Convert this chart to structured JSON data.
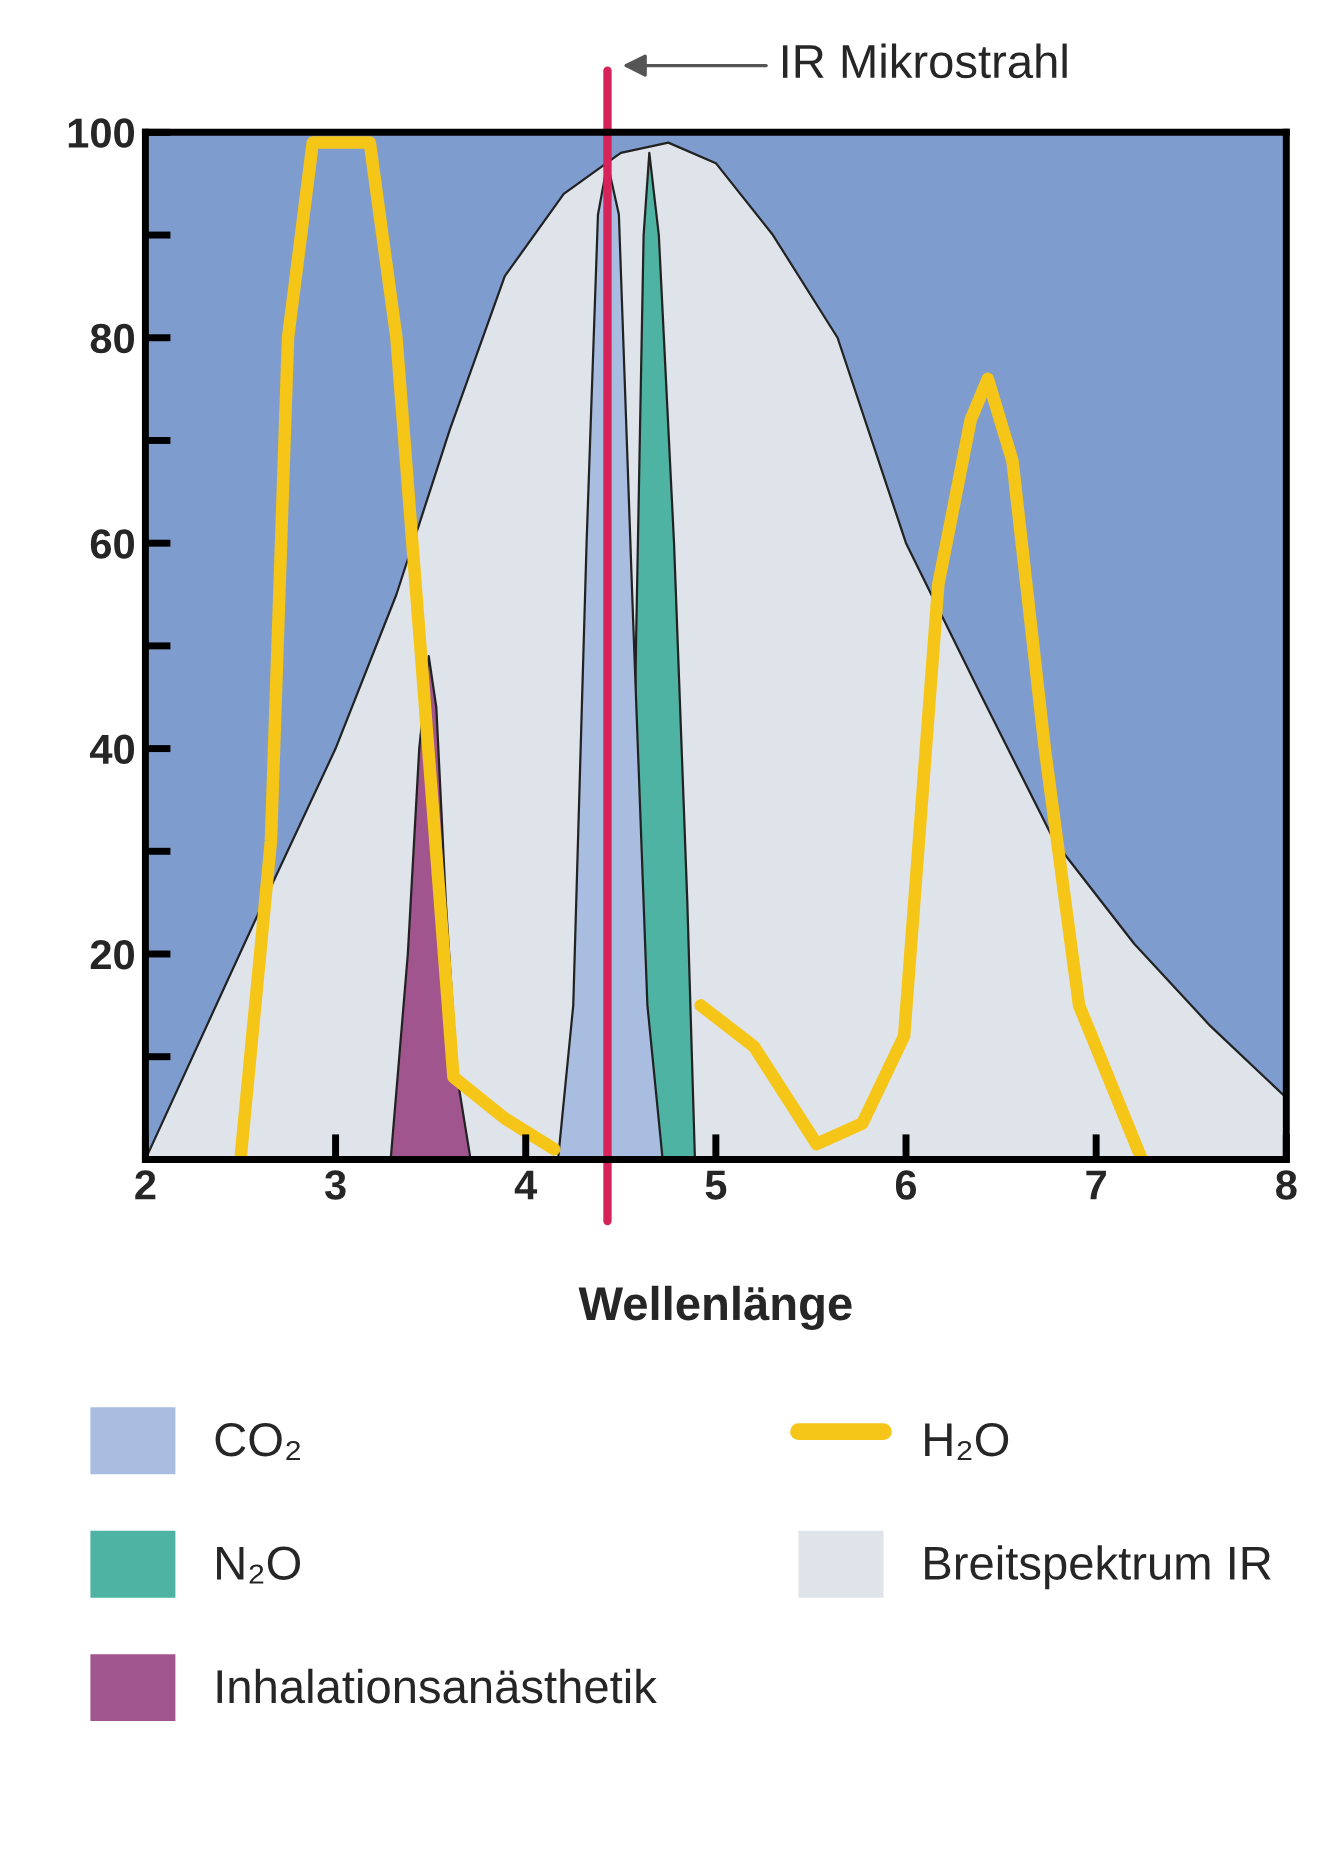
{
  "chart_data": {
    "type": "area",
    "xlabel": "Wellenlänge",
    "series": [
      {
        "name": "CO₂",
        "color": "#a9bde0",
        "x": [
          4.17,
          4.25,
          4.32,
          4.38,
          4.43,
          4.49,
          4.56,
          4.64,
          4.72
        ],
        "values": [
          0,
          15,
          60,
          92,
          97,
          92,
          55,
          15,
          0
        ]
      },
      {
        "name": "N₂O",
        "color": "#4fb3a3",
        "x": [
          4.54,
          4.58,
          4.62,
          4.65,
          4.7,
          4.78,
          4.85,
          4.89
        ],
        "values": [
          0,
          50,
          90,
          98,
          90,
          60,
          25,
          0
        ]
      },
      {
        "name": "Inhalationsanästhetik",
        "color": "#a0558f",
        "x": [
          3.29,
          3.38,
          3.44,
          3.49,
          3.53,
          3.58,
          3.64,
          3.71
        ],
        "values": [
          0,
          20,
          40,
          49,
          44,
          25,
          8,
          0
        ]
      },
      {
        "name": "H₂O",
        "type": "line",
        "color": "#f5c518",
        "x": [
          2.5,
          2.66,
          2.75,
          2.88,
          3.18,
          3.32,
          3.45,
          3.62,
          3.89,
          4.15,
          4.5,
          4.92,
          5.2,
          5.53,
          5.77,
          5.99,
          6.17,
          6.34,
          6.43,
          6.56,
          6.73,
          6.91,
          7.24
        ],
        "values": [
          0,
          31,
          80,
          99,
          99,
          80,
          49,
          8,
          4,
          1,
          null,
          15,
          11,
          1.5,
          3.5,
          12,
          56,
          72,
          76,
          68,
          40,
          15,
          0
        ]
      },
      {
        "name": "Breitspektrum IR",
        "color": "#dfe4ea",
        "x": [
          2,
          2.57,
          3,
          3.32,
          3.6,
          3.89,
          4.2,
          4.5,
          4.75,
          5,
          5.3,
          5.64,
          6,
          6.4,
          6.78,
          7.2,
          7.6,
          8
        ],
        "values": [
          0,
          23,
          40,
          55,
          71,
          86,
          94,
          98,
          99,
          97,
          90,
          80,
          60,
          45,
          31,
          21,
          13,
          6
        ]
      }
    ],
    "xlim": [
      2,
      8
    ],
    "xticks": [
      2,
      3,
      4,
      5,
      6,
      7,
      8
    ],
    "ylim": [
      0,
      100
    ],
    "yticks": [
      {
        "value": 10,
        "label": null
      },
      20,
      {
        "value": 30,
        "label": null
      },
      40,
      {
        "value": 50,
        "label": null
      },
      60,
      {
        "value": 70,
        "label": null
      },
      80,
      {
        "value": 90,
        "label": null
      },
      100
    ],
    "ref_lines": [
      {
        "axis": "x",
        "value": 4.43,
        "label": "IR Mikrostrahl",
        "color": "#d6245a"
      }
    ],
    "legend": "bottom",
    "grid": false
  }
}
